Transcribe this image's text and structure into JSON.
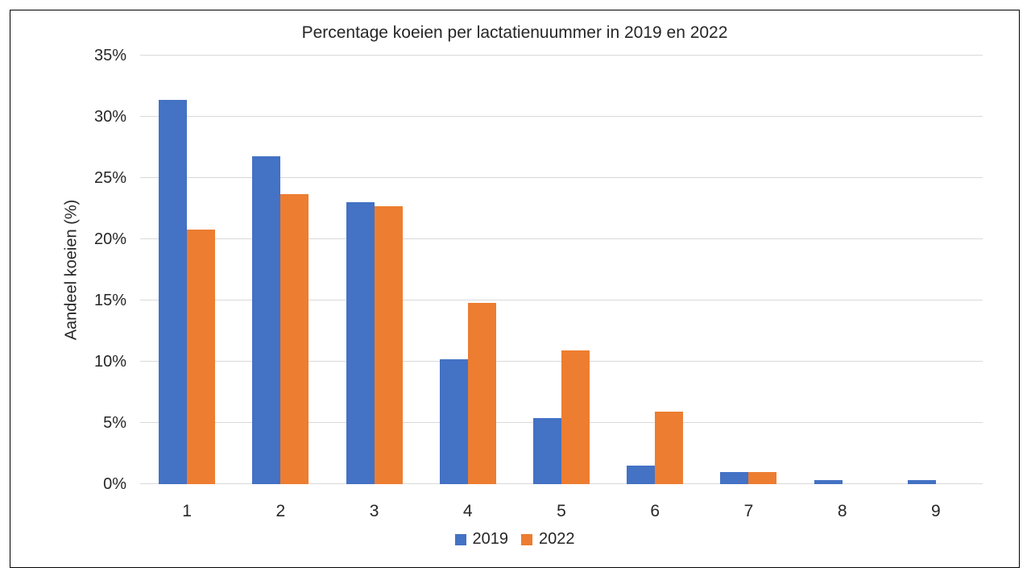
{
  "chart": {
    "title": "Percentage koeien per lactatienuummer in 2019 en 2022",
    "y_axis_label": "Aandeel koeien (%)",
    "colors": {
      "series_2019": "#4472C4",
      "series_2022": "#ED7D31",
      "gridline": "#D9D9D9",
      "text": "#262626",
      "frame_border": "#000000",
      "background": "#FFFFFF"
    }
  },
  "chart_data": {
    "type": "bar",
    "title": "Percentage koeien per lactatienuummer in 2019 en 2022",
    "xlabel": "",
    "ylabel": "Aandeel koeien (%)",
    "categories": [
      "1",
      "2",
      "3",
      "4",
      "5",
      "6",
      "7",
      "8",
      "9"
    ],
    "series": [
      {
        "name": "2019",
        "color": "#4472C4",
        "values": [
          31.4,
          26.8,
          23.0,
          10.2,
          5.4,
          1.5,
          1.0,
          0.3,
          0.3
        ]
      },
      {
        "name": "2022",
        "color": "#ED7D31",
        "values": [
          20.8,
          23.7,
          22.7,
          14.8,
          10.9,
          5.9,
          1.0,
          0,
          0
        ]
      }
    ],
    "ylim": [
      0,
      35
    ],
    "ytick_step": 5,
    "ytick_labels": [
      "0%",
      "5%",
      "10%",
      "15%",
      "20%",
      "25%",
      "30%",
      "35%"
    ],
    "grid": true,
    "legend_position": "bottom",
    "legend_entries": [
      "2019",
      "2022"
    ]
  }
}
